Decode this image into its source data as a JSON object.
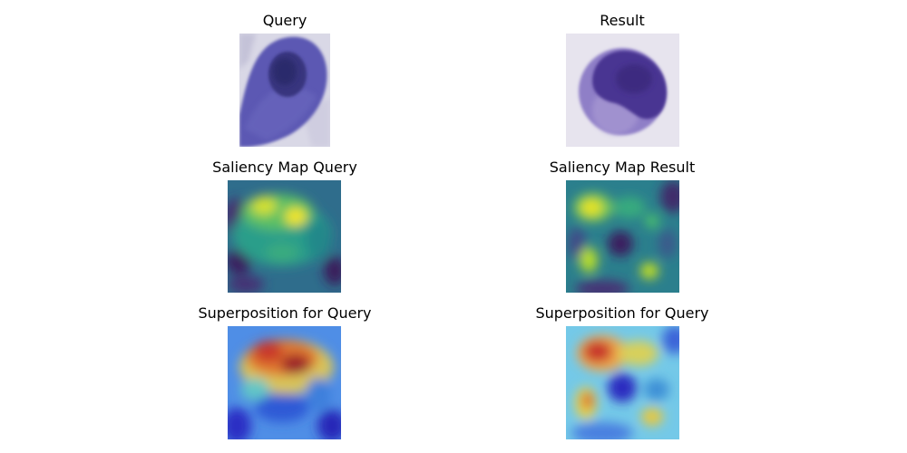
{
  "figure": {
    "panels": [
      {
        "id": "query",
        "title": "Query",
        "kind": "cell-image"
      },
      {
        "id": "result",
        "title": "Result",
        "kind": "cell-image"
      },
      {
        "id": "saliency-query",
        "title": "Saliency Map Query",
        "kind": "saliency-map"
      },
      {
        "id": "saliency-result",
        "title": "Saliency Map Result",
        "kind": "saliency-map"
      },
      {
        "id": "superposition-query",
        "title": "Superposition for Query",
        "kind": "overlay"
      },
      {
        "id": "superposition-result",
        "title": "Superposition for Query",
        "kind": "overlay"
      }
    ]
  }
}
